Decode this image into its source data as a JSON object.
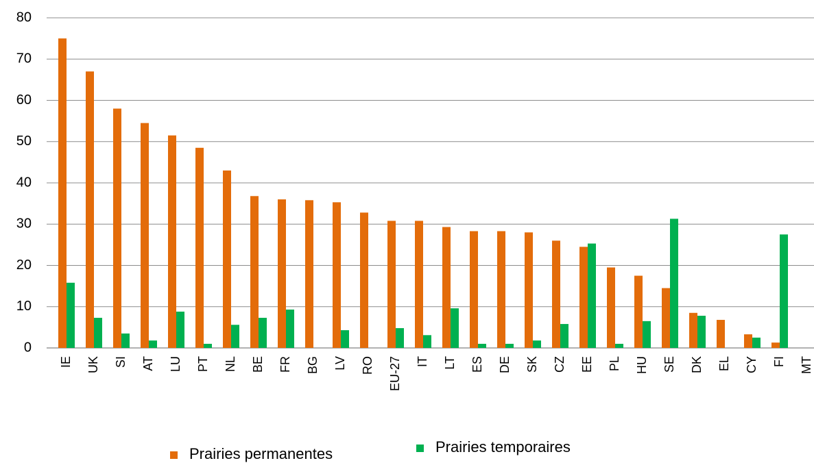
{
  "chart_data": {
    "type": "bar",
    "categories": [
      "IE",
      "UK",
      "SI",
      "AT",
      "LU",
      "PT",
      "NL",
      "BE",
      "FR",
      "BG",
      "LV",
      "RO",
      "EU-27",
      "IT",
      "LT",
      "ES",
      "DE",
      "SK",
      "CZ",
      "EE",
      "PL",
      "HU",
      "SE",
      "DK",
      "EL",
      "CY",
      "FI",
      "MT"
    ],
    "series": [
      {
        "name": "Prairies permanentes",
        "color": "#E36C0A",
        "values": [
          75,
          67,
          58,
          54.5,
          51.5,
          48.5,
          43,
          36.8,
          36,
          35.8,
          35.3,
          32.8,
          30.8,
          30.8,
          29.3,
          28.3,
          28.3,
          28,
          26,
          24.5,
          19.5,
          17.5,
          14.5,
          8.5,
          6.8,
          3.3,
          1.3,
          0
        ]
      },
      {
        "name": "Prairies temporaires",
        "color": "#00B050",
        "values": [
          15.8,
          7.3,
          3.5,
          1.8,
          8.8,
          1,
          5.6,
          7.3,
          9.3,
          0,
          4.3,
          0,
          4.8,
          3.1,
          9.6,
          1,
          1,
          1.8,
          5.8,
          25.3,
          1,
          6.5,
          31.3,
          7.8,
          0,
          2.5,
          27.5,
          0
        ]
      }
    ],
    "ylim": [
      0,
      80
    ],
    "yticks": [
      0,
      10,
      20,
      30,
      40,
      50,
      60,
      70,
      80
    ],
    "grid": true
  }
}
